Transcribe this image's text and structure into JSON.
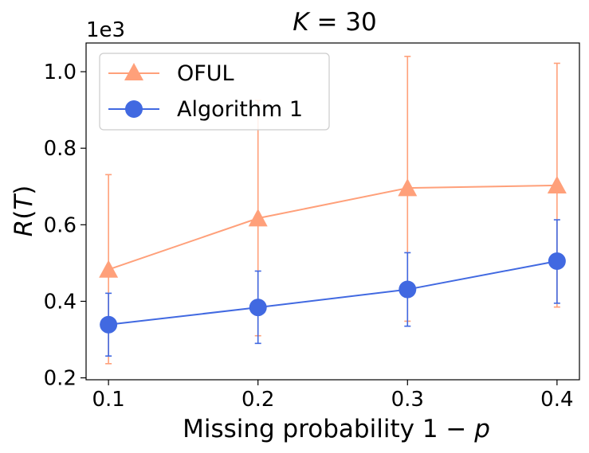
{
  "chart_data": {
    "type": "line",
    "title_prefix": "K",
    "title_suffix": " = 30",
    "xlabel_text": "Missing probability ",
    "xlabel_math_num": "1 − ",
    "xlabel_math_var": "p",
    "ylabel_main": "R",
    "ylabel_open": "(",
    "ylabel_var": "T",
    "ylabel_close": ")",
    "y_scale_label": "1e3",
    "x": [
      0.1,
      0.2,
      0.3,
      0.4
    ],
    "x_tick_labels": [
      "0.1",
      "0.2",
      "0.3",
      "0.4"
    ],
    "xlim": [
      0.085,
      0.415
    ],
    "ylim": [
      0.195,
      1.075
    ],
    "y_ticks": [
      0.2,
      0.4,
      0.6,
      0.8,
      1.0
    ],
    "y_tick_labels": [
      "0.2",
      "0.4",
      "0.6",
      "0.8",
      "1.0"
    ],
    "legend_position": "top-left",
    "series": [
      {
        "name": "OFUL",
        "color": "#FFA07A",
        "marker": "triangle",
        "values": [
          0.483,
          0.617,
          0.696,
          0.703
        ],
        "err_low": [
          0.237,
          0.31,
          0.348,
          0.385
        ],
        "err_high": [
          0.731,
          0.925,
          1.04,
          1.022
        ]
      },
      {
        "name": "Algorithm 1",
        "color": "#4169E1",
        "marker": "circle",
        "values": [
          0.339,
          0.384,
          0.431,
          0.505
        ],
        "err_low": [
          0.257,
          0.29,
          0.335,
          0.395
        ],
        "err_high": [
          0.421,
          0.479,
          0.527,
          0.613
        ]
      }
    ]
  }
}
